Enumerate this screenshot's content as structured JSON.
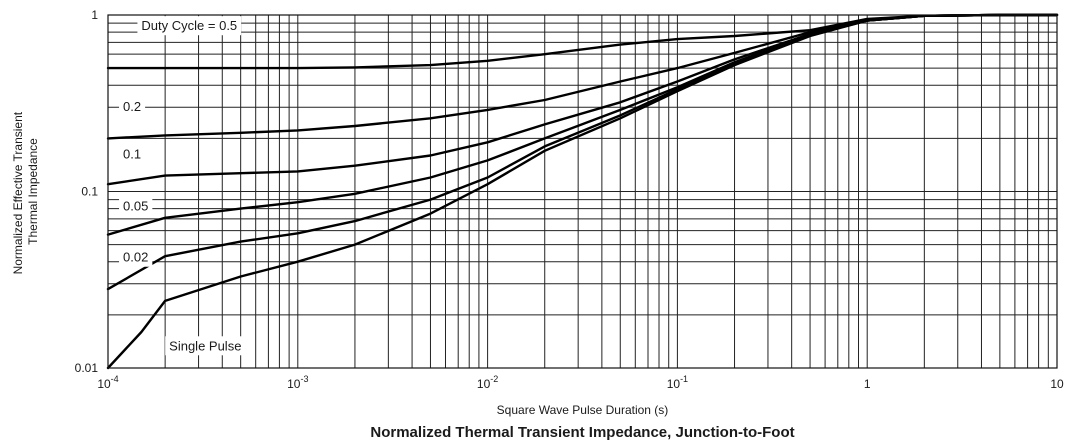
{
  "chart_data": {
    "type": "line",
    "title": "Normalized Thermal Transient Impedance, Junction-to-Foot",
    "xlabel": "Square Wave Pulse Duration (s)",
    "ylabel_lines": [
      "Normalized Effective Transient",
      "Thermal Impedance"
    ],
    "x_scale": "log",
    "y_scale": "log",
    "xlim": [
      0.0001,
      10
    ],
    "ylim": [
      0.01,
      1
    ],
    "grid": true,
    "x_ticks": [
      {
        "value": 0.0001,
        "base": "10",
        "exp": "-4"
      },
      {
        "value": 0.001,
        "base": "10",
        "exp": "-3"
      },
      {
        "value": 0.01,
        "base": "10",
        "exp": "-2"
      },
      {
        "value": 0.1,
        "base": "10",
        "exp": "-1"
      },
      {
        "value": 1,
        "base": "1",
        "exp": ""
      },
      {
        "value": 10,
        "base": "10",
        "exp": ""
      }
    ],
    "y_ticks": [
      {
        "value": 0.01,
        "label": "0.01"
      },
      {
        "value": 0.1,
        "label": "0.1"
      },
      {
        "value": 1,
        "label": "1"
      }
    ],
    "series": [
      {
        "name": "Duty Cycle = 0.5",
        "label_at": [
          0.00015,
          0.82
        ],
        "points": [
          [
            0.0001,
            0.5
          ],
          [
            0.0002,
            0.5
          ],
          [
            0.0005,
            0.5
          ],
          [
            0.001,
            0.5
          ],
          [
            0.002,
            0.505
          ],
          [
            0.005,
            0.52
          ],
          [
            0.01,
            0.55
          ],
          [
            0.02,
            0.6
          ],
          [
            0.05,
            0.68
          ],
          [
            0.1,
            0.73
          ],
          [
            0.2,
            0.76
          ],
          [
            0.5,
            0.82
          ],
          [
            1,
            0.95
          ],
          [
            2,
            0.99
          ],
          [
            5,
            1
          ],
          [
            10,
            1
          ]
        ]
      },
      {
        "name": "0.2",
        "label_at": [
          0.00012,
          0.285
        ],
        "points": [
          [
            0.0001,
            0.2
          ],
          [
            0.0002,
            0.208
          ],
          [
            0.0005,
            0.215
          ],
          [
            0.001,
            0.222
          ],
          [
            0.002,
            0.235
          ],
          [
            0.005,
            0.26
          ],
          [
            0.01,
            0.29
          ],
          [
            0.02,
            0.33
          ],
          [
            0.05,
            0.42
          ],
          [
            0.1,
            0.5
          ],
          [
            0.2,
            0.61
          ],
          [
            0.5,
            0.8
          ],
          [
            1,
            0.94
          ],
          [
            2,
            0.99
          ],
          [
            5,
            1
          ],
          [
            10,
            1
          ]
        ]
      },
      {
        "name": "0.1",
        "label_at": [
          0.00012,
          0.154
        ],
        "points": [
          [
            0.0001,
            0.11
          ],
          [
            0.0002,
            0.123
          ],
          [
            0.0005,
            0.127
          ],
          [
            0.001,
            0.13
          ],
          [
            0.002,
            0.14
          ],
          [
            0.005,
            0.16
          ],
          [
            0.01,
            0.19
          ],
          [
            0.02,
            0.24
          ],
          [
            0.05,
            0.32
          ],
          [
            0.1,
            0.42
          ],
          [
            0.2,
            0.56
          ],
          [
            0.5,
            0.78
          ],
          [
            1,
            0.93
          ],
          [
            2,
            0.99
          ],
          [
            5,
            1
          ],
          [
            10,
            1
          ]
        ]
      },
      {
        "name": "0.05",
        "label_at": [
          0.00012,
          0.078
        ],
        "points": [
          [
            0.0001,
            0.057
          ],
          [
            0.0002,
            0.071
          ],
          [
            0.0005,
            0.08
          ],
          [
            0.001,
            0.087
          ],
          [
            0.002,
            0.097
          ],
          [
            0.005,
            0.12
          ],
          [
            0.01,
            0.15
          ],
          [
            0.02,
            0.2
          ],
          [
            0.05,
            0.29
          ],
          [
            0.1,
            0.39
          ],
          [
            0.2,
            0.54
          ],
          [
            0.5,
            0.77
          ],
          [
            1,
            0.93
          ],
          [
            2,
            0.99
          ],
          [
            5,
            1
          ],
          [
            10,
            1
          ]
        ]
      },
      {
        "name": "0.02",
        "label_at": [
          0.00012,
          0.04
        ],
        "points": [
          [
            0.0001,
            0.028
          ],
          [
            0.0002,
            0.043
          ],
          [
            0.0005,
            0.052
          ],
          [
            0.001,
            0.058
          ],
          [
            0.002,
            0.068
          ],
          [
            0.005,
            0.09
          ],
          [
            0.01,
            0.12
          ],
          [
            0.02,
            0.18
          ],
          [
            0.05,
            0.27
          ],
          [
            0.1,
            0.38
          ],
          [
            0.2,
            0.53
          ],
          [
            0.5,
            0.77
          ],
          [
            1,
            0.93
          ],
          [
            2,
            0.99
          ],
          [
            5,
            1
          ],
          [
            10,
            1
          ]
        ]
      },
      {
        "name": "Single Pulse",
        "label_at": [
          0.00021,
          0.0126
        ],
        "points": [
          [
            0.0001,
            0.01
          ],
          [
            0.00015,
            0.016
          ],
          [
            0.0002,
            0.024
          ],
          [
            0.0005,
            0.033
          ],
          [
            0.001,
            0.04
          ],
          [
            0.002,
            0.05
          ],
          [
            0.005,
            0.075
          ],
          [
            0.01,
            0.11
          ],
          [
            0.02,
            0.17
          ],
          [
            0.05,
            0.26
          ],
          [
            0.1,
            0.37
          ],
          [
            0.2,
            0.52
          ],
          [
            0.5,
            0.76
          ],
          [
            1,
            0.93
          ],
          [
            2,
            0.99
          ],
          [
            5,
            1
          ],
          [
            10,
            1
          ]
        ]
      }
    ]
  }
}
